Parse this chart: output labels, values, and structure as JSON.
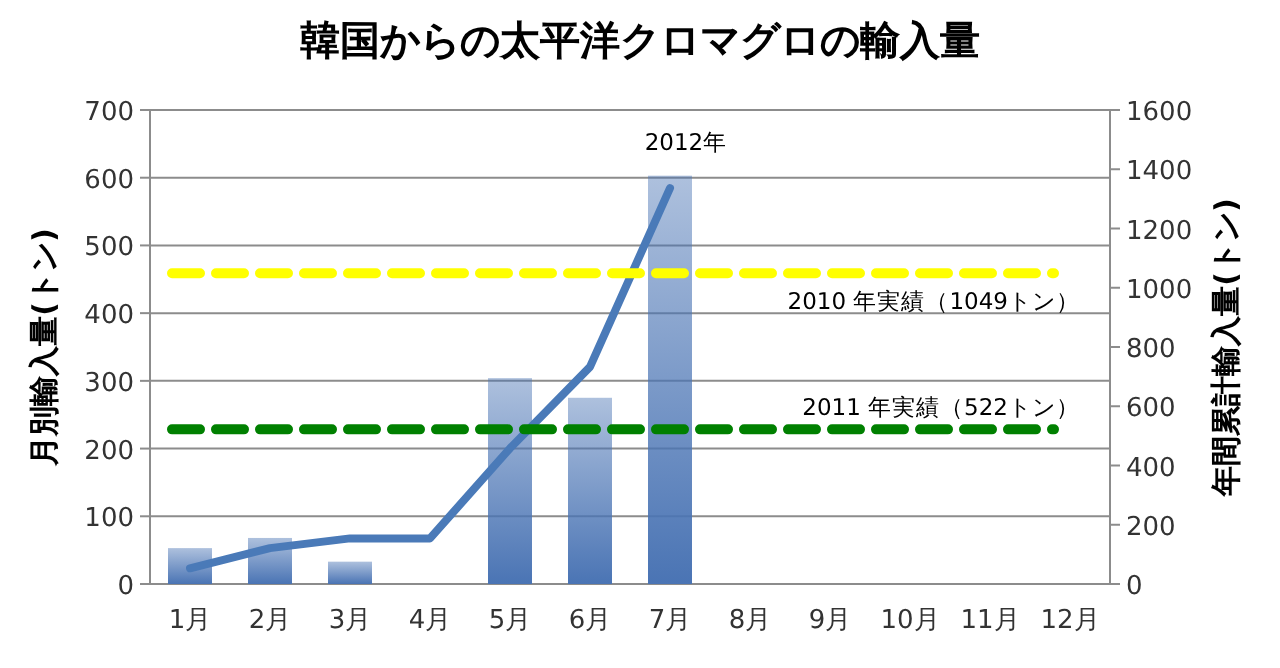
{
  "chart_data": {
    "type": "bar",
    "title": "韓国からの太平洋クロマグロの輸入量",
    "ylabel": "月別輸入量(トン)",
    "y2label": "年間累計輸入量(トン)",
    "categories": [
      "1月",
      "2月",
      "3月",
      "4月",
      "5月",
      "6月",
      "7月",
      "8月",
      "9月",
      "10月",
      "11月",
      "12月"
    ],
    "series": [
      {
        "color": "#4a74b4",
        "values": [
          53,
          68,
          33,
          0,
          304,
          275,
          603,
          null,
          null,
          null,
          null,
          null
        ]
      },
      {
        "type": "line",
        "name": "2012年",
        "axis": "y2",
        "color": "#4a7ab8",
        "values": [
          53,
          121,
          154,
          154,
          458,
          733,
          1336,
          null,
          null,
          null,
          null,
          null
        ]
      }
    ],
    "ylim": [
      0,
      700
    ],
    "yticks": [
      0,
      100,
      200,
      300,
      400,
      500,
      600,
      700
    ],
    "y2lim": [
      0,
      1600
    ],
    "y2ticks": [
      0,
      200,
      400,
      600,
      800,
      1000,
      1200,
      1400,
      1600
    ],
    "grid": "y",
    "ref_lines": [
      {
        "axis": "y2",
        "value": 1049,
        "label": "2010 年実績（1049トン）",
        "color": "#ffff00",
        "line_style": "dashed"
      },
      {
        "axis": "y2",
        "value": 522,
        "label": "2011 年実績（522トン）",
        "color": "#008000",
        "line_style": "dashed"
      }
    ]
  }
}
